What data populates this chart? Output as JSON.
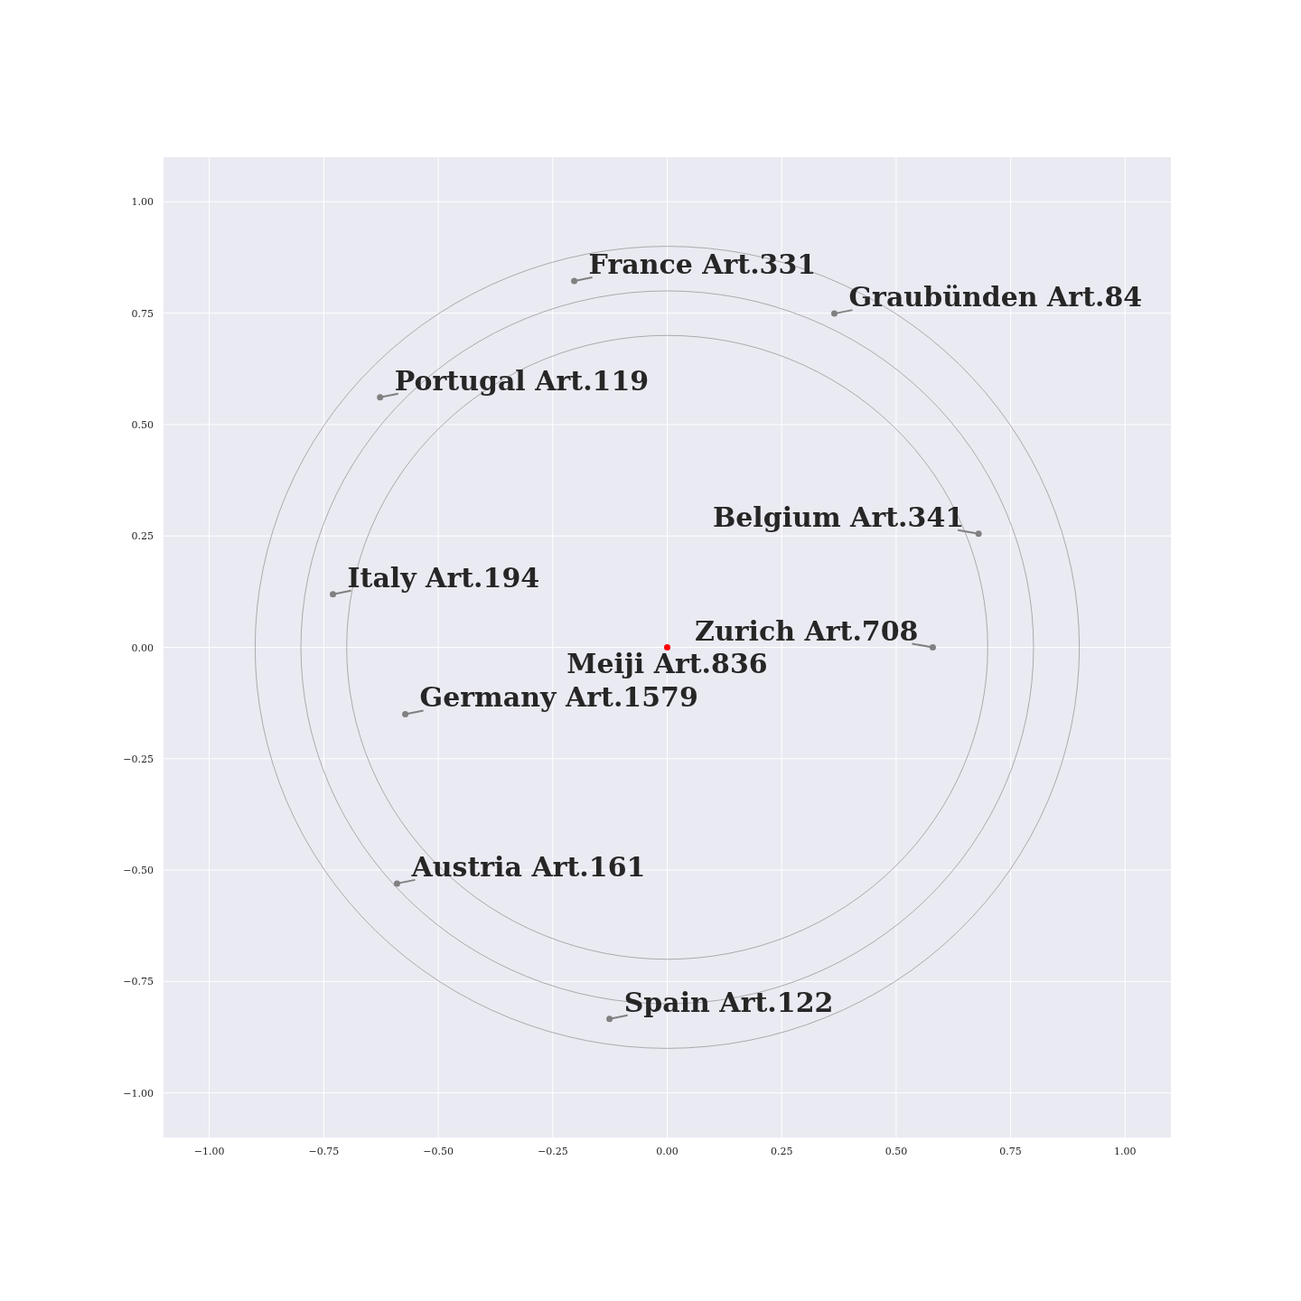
{
  "chart_data": {
    "type": "scatter",
    "xlim": [
      -1.1,
      1.1
    ],
    "ylim": [
      -1.1,
      1.1
    ],
    "xticks": [
      {
        "value": -1,
        "label": "−1.00"
      },
      {
        "value": -0.75,
        "label": "−0.75"
      },
      {
        "value": -0.5,
        "label": "−0.50"
      },
      {
        "value": -0.25,
        "label": "−0.25"
      },
      {
        "value": 0,
        "label": "0.00"
      },
      {
        "value": 0.25,
        "label": "0.25"
      },
      {
        "value": 0.5,
        "label": "0.50"
      },
      {
        "value": 0.75,
        "label": "0.75"
      },
      {
        "value": 1,
        "label": "1.00"
      }
    ],
    "yticks": [
      {
        "value": -1,
        "label": "−1.00"
      },
      {
        "value": -0.75,
        "label": "−0.75"
      },
      {
        "value": -0.5,
        "label": "−0.50"
      },
      {
        "value": -0.25,
        "label": "−0.25"
      },
      {
        "value": 0,
        "label": "0.00"
      },
      {
        "value": 0.25,
        "label": "0.25"
      },
      {
        "value": 0.5,
        "label": "0.50"
      },
      {
        "value": 0.75,
        "label": "0.75"
      },
      {
        "value": 1,
        "label": "1.00"
      }
    ],
    "grid": true,
    "marker": "circle",
    "series": [
      {
        "color": "#808080",
        "x": [
          -0.203,
          0.365,
          -0.627,
          0.68,
          -0.73,
          0.58,
          -0.572,
          -0.59,
          -0.126
        ],
        "values": [
          0.822,
          0.749,
          0.561,
          0.255,
          0.119,
          0,
          -0.15,
          -0.53,
          -0.834
        ],
        "value_labels": [
          "France Art.331",
          "Graubünden Art.84",
          "Portugal Art.119",
          "Belgium Art.341",
          "Italy Art.194",
          "Zurich Art.708",
          "Germany Art.1579",
          "Austria Art.161",
          "Spain Art.122"
        ]
      },
      {
        "color": "#ff0000",
        "x": [
          0
        ],
        "values": [
          0
        ],
        "value_labels": [
          "Meiji Art.836"
        ]
      }
    ]
  }
}
